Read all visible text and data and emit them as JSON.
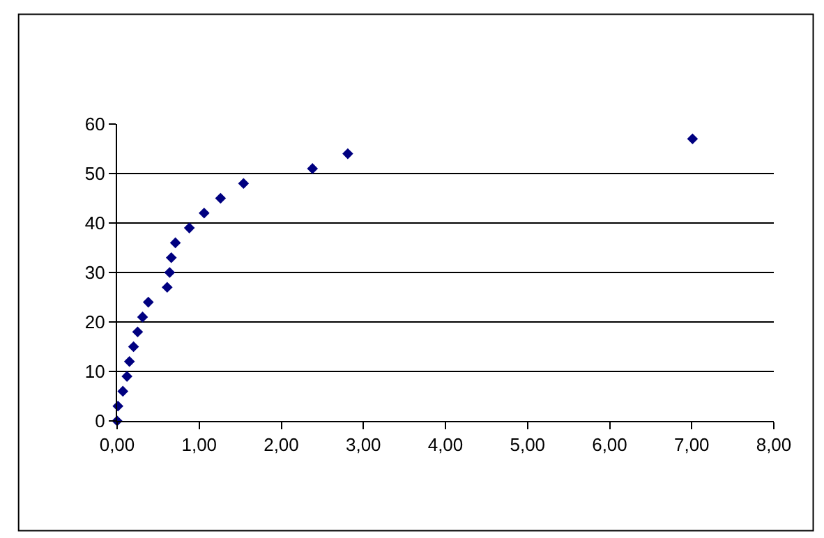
{
  "chart_data": {
    "type": "scatter",
    "x": [
      0,
      0.01,
      0.07,
      0.12,
      0.15,
      0.2,
      0.25,
      0.31,
      0.38,
      0.61,
      0.64,
      0.66,
      0.71,
      0.88,
      1.06,
      1.26,
      1.54,
      2.38,
      2.81,
      7.01
    ],
    "series": [
      {
        "color": "#000080",
        "values": [
          0,
          3,
          6,
          9,
          12,
          15,
          18,
          21,
          24,
          27,
          30,
          33,
          36,
          39,
          42,
          45,
          48,
          51,
          54,
          57
        ]
      }
    ],
    "xlim": [
      0,
      8
    ],
    "xticks": [
      {
        "value": 0,
        "label": "0,00"
      },
      {
        "value": 1,
        "label": "1,00"
      },
      {
        "value": 2,
        "label": "2,00"
      },
      {
        "value": 3,
        "label": "3,00"
      },
      {
        "value": 4,
        "label": "4,00"
      },
      {
        "value": 5,
        "label": "5,00"
      },
      {
        "value": 6,
        "label": "6,00"
      },
      {
        "value": 7,
        "label": "7,00"
      },
      {
        "value": 8,
        "label": "8,00"
      }
    ],
    "ylim": [
      0,
      60
    ],
    "yticks": [
      0,
      10,
      20,
      30,
      40,
      50,
      60
    ],
    "grid": "y",
    "marker": "diamond"
  }
}
